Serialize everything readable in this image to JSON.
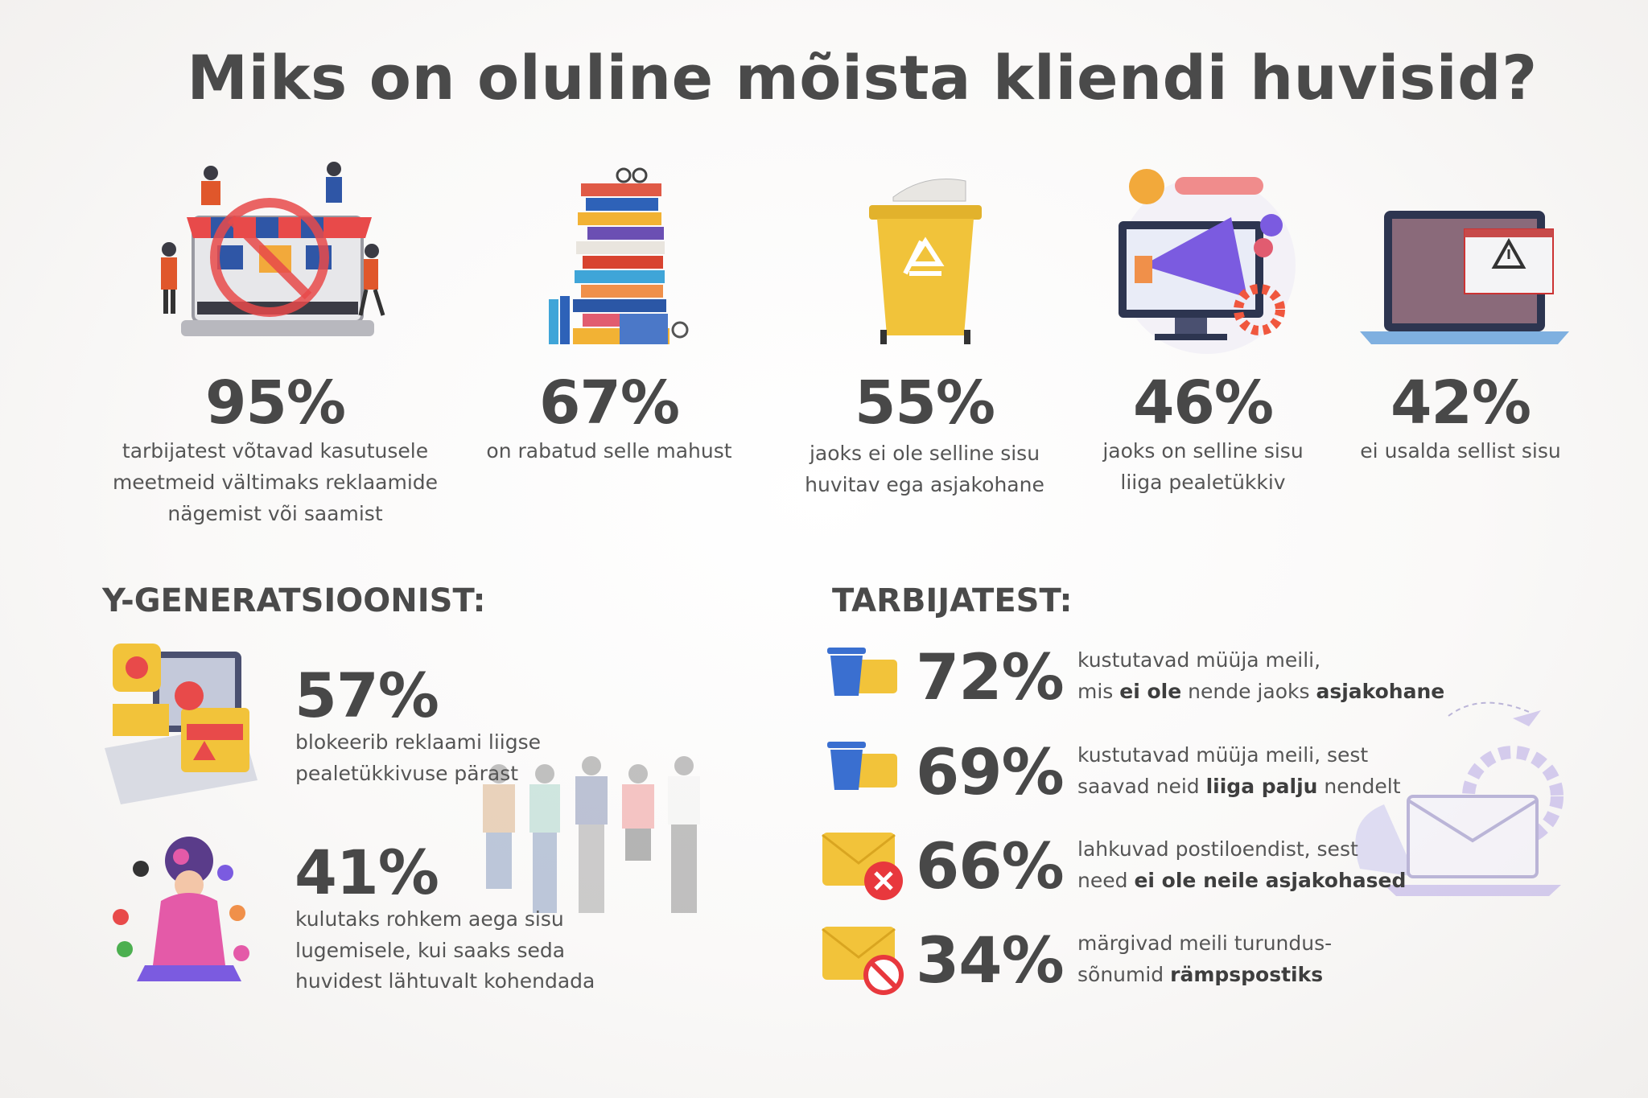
{
  "title": "Miks on oluline mõista kliendi huvisid?",
  "top_stats": [
    {
      "percent": "95%",
      "lines": [
        "tarbijatest võtavad kasutusele",
        "meetmeid vältimaks reklaamide",
        "nägemist või saamist"
      ]
    },
    {
      "percent": "67%",
      "lines": [
        "on rabatud selle mahust"
      ]
    },
    {
      "percent": "55%",
      "lines": [
        "jaoks ei ole selline sisu",
        "huvitav ega asjakohane"
      ]
    },
    {
      "percent": "46%",
      "lines": [
        "jaoks on selline sisu",
        "liiga pealetükkiv"
      ]
    },
    {
      "percent": "42%",
      "lines": [
        "ei usalda sellist sisu"
      ]
    }
  ],
  "y_generation": {
    "heading": "Y-GENERATSIOONIST:",
    "items": [
      {
        "percent": "57%",
        "lines": [
          "blokeerib reklaami liigse",
          "pealetükkivuse pärast"
        ]
      },
      {
        "percent": "41%",
        "lines": [
          "kulutaks rohkem aega sisu",
          "lugemisele, kui saaks seda",
          "huvidest lähtuvalt kohendada"
        ]
      }
    ]
  },
  "consumers": {
    "heading": "TARBIJATEST:",
    "items": [
      {
        "percent": "72%",
        "lines": [
          "kustutavad müüja meili,",
          [
            "mis ",
            {
              "text": "ei ole",
              "bold": true
            },
            " nende jaoks ",
            {
              "text": "asjakohane",
              "bold": true
            }
          ]
        ]
      },
      {
        "percent": "69%",
        "lines": [
          "kustutavad müüja meili, sest",
          [
            "saavad neid ",
            {
              "text": "liiga palju",
              "bold": true
            },
            " nendelt"
          ]
        ]
      },
      {
        "percent": "66%",
        "lines": [
          "lahkuvad postiloendist, sest",
          [
            "need ",
            {
              "text": "ei ole neile asjakohased",
              "bold": true
            }
          ]
        ]
      },
      {
        "percent": "34%",
        "lines": [
          "märgivad meili turundus-",
          [
            "sõnumid ",
            {
              "text": "rämpspostiks",
              "bold": true
            }
          ]
        ]
      }
    ]
  }
}
